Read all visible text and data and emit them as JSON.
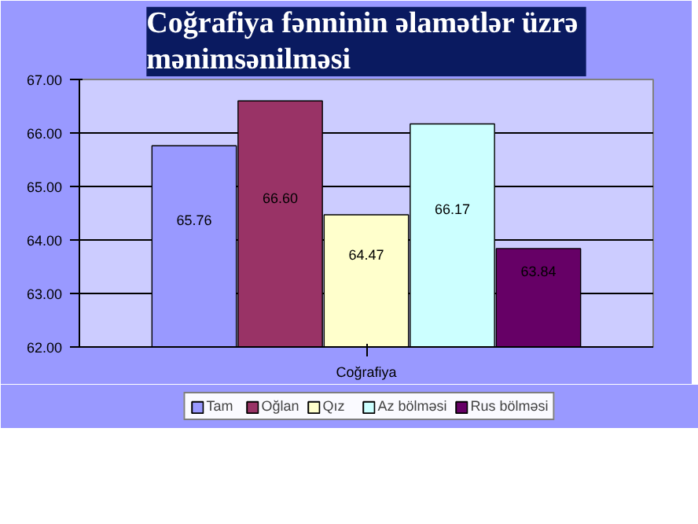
{
  "chart_data": {
    "type": "bar",
    "title": "Coğrafiya  fənninin əlamətlər üzrə\nmənimsənilməsi",
    "categories": [
      "Coğrafiya"
    ],
    "series": [
      {
        "name": "Tam",
        "color": "#9999ff",
        "values": [
          65.76
        ],
        "value_labels": [
          "65.76"
        ]
      },
      {
        "name": "Oğlan",
        "color": "#993366",
        "values": [
          66.6
        ],
        "value_labels": [
          "66.60"
        ]
      },
      {
        "name": "Qız",
        "color": "#ffffcc",
        "values": [
          64.47
        ],
        "value_labels": [
          "64.47"
        ]
      },
      {
        "name": "Az bölməsi",
        "color": "#ccffff",
        "values": [
          66.17
        ],
        "value_labels": [
          "66.17"
        ]
      },
      {
        "name": "Rus bölməsi",
        "color": "#660066",
        "values": [
          63.84
        ],
        "value_labels": [
          "63.84"
        ]
      }
    ],
    "ylim": [
      62,
      67
    ],
    "yticks": [
      {
        "value": 62,
        "label": "62.00"
      },
      {
        "value": 63,
        "label": "63.00"
      },
      {
        "value": 64,
        "label": "64.00"
      },
      {
        "value": 65,
        "label": "65.00"
      },
      {
        "value": 66,
        "label": "66.00"
      },
      {
        "value": 67,
        "label": "67.00"
      }
    ],
    "grid": "y",
    "legend": "bottom"
  }
}
